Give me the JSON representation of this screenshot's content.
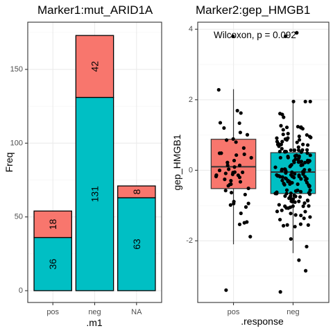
{
  "chart_data": [
    {
      "type": "bar",
      "title": "Marker1:mut_ARID1A",
      "xlabel": ".m1",
      "ylabel": "Freq",
      "categories": [
        "pos",
        "neg",
        "NA"
      ],
      "series": [
        {
          "color": "#00BFC4",
          "values": [
            36,
            131,
            63
          ]
        },
        {
          "color": "#F8766D",
          "values": [
            18,
            42,
            8
          ]
        }
      ],
      "yticks": [
        0,
        50,
        100,
        150
      ],
      "ylim": [
        -8,
        182
      ],
      "grid": true,
      "legend": "none"
    },
    {
      "type": "scatter",
      "subtype": "boxplot-with-jitter",
      "title": "Marker2:gep_HMGB1",
      "xlabel": ".response",
      "ylabel": "gep_HMGB1",
      "categories": [
        "pos",
        "neg"
      ],
      "annotation": "Wilcoxon, p = 0.092",
      "yticks": [
        -2,
        0,
        2,
        4
      ],
      "ylim": [
        -3.75,
        4.2
      ],
      "grid": true,
      "legend": "none",
      "boxes": [
        {
          "category": "pos",
          "color": "#F8766D",
          "q1": -0.52,
          "median": 0.1,
          "q3": 0.88,
          "whisker_low": -2.1,
          "whisker_high": 2.3,
          "n": 54
        },
        {
          "category": "neg",
          "color": "#00BFC4",
          "q1": -0.66,
          "median": -0.05,
          "q3": 0.5,
          "whisker_low": -2.35,
          "whisker_high": 1.95,
          "n": 173
        }
      ],
      "outliers": [
        {
          "category": "neg",
          "y": 3.8
        },
        {
          "category": "neg",
          "y": 3.9
        },
        {
          "category": "pos",
          "y": 3.8
        },
        {
          "category": "pos",
          "y": -3.4
        },
        {
          "category": "neg",
          "y": -3.45
        },
        {
          "category": "neg",
          "y": -2.85
        },
        {
          "category": "neg",
          "y": -2.55
        }
      ]
    }
  ]
}
